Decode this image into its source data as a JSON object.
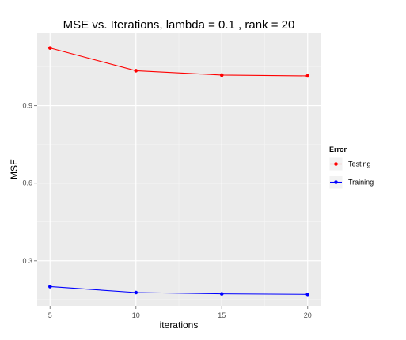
{
  "chart_data": {
    "type": "line",
    "title": "MSE vs. Iterations, lambda =  0.1 , rank =  20",
    "xlabel": "iterations",
    "ylabel": "MSE",
    "x": [
      5,
      10,
      15,
      20
    ],
    "x_ticks": [
      "5",
      "10",
      "15",
      "20"
    ],
    "y_ticks": [
      "0.3",
      "0.6",
      "0.9"
    ],
    "xlim": [
      4.25,
      20.75
    ],
    "ylim": [
      0.125,
      1.18
    ],
    "grid": true,
    "legend_title": "Error",
    "legend_position": "right",
    "series": [
      {
        "name": "Testing",
        "color": "#ff0000",
        "values": [
          1.123,
          1.035,
          1.018,
          1.015
        ]
      },
      {
        "name": "Training",
        "color": "#0000ff",
        "values": [
          0.2,
          0.177,
          0.172,
          0.17
        ]
      }
    ]
  },
  "colors": {
    "panel_background": "#ebebeb",
    "grid_major": "#ffffff",
    "grid_minor": "#f5f5f5"
  }
}
